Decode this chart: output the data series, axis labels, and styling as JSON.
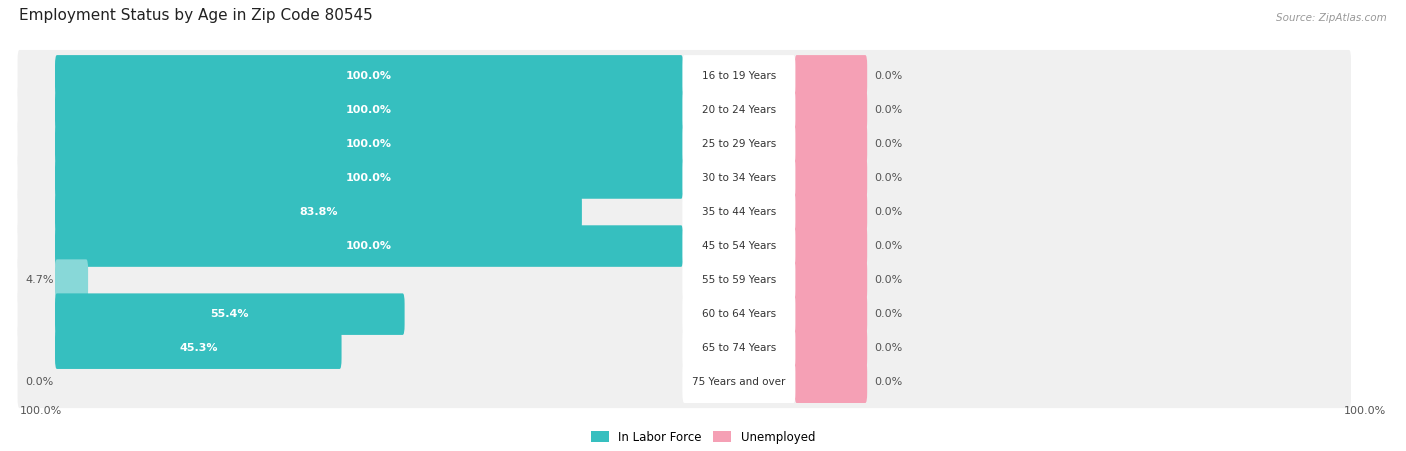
{
  "title": "Employment Status by Age in Zip Code 80545",
  "source_text": "Source: ZipAtlas.com",
  "categories": [
    "16 to 19 Years",
    "20 to 24 Years",
    "25 to 29 Years",
    "30 to 34 Years",
    "35 to 44 Years",
    "45 to 54 Years",
    "55 to 59 Years",
    "60 to 64 Years",
    "65 to 74 Years",
    "75 Years and over"
  ],
  "in_labor_force": [
    100.0,
    100.0,
    100.0,
    100.0,
    83.8,
    100.0,
    4.7,
    55.4,
    45.3,
    0.0
  ],
  "unemployed": [
    0.0,
    0.0,
    0.0,
    0.0,
    0.0,
    0.0,
    0.0,
    0.0,
    0.0,
    0.0
  ],
  "labor_color": "#36bfbf",
  "labor_color_light": "#88d8d8",
  "unemployed_color": "#f5a0b5",
  "row_bg_color": "#f0f0f0",
  "row_bg_color2": "#e8e8e8",
  "label_inside_color": "#ffffff",
  "label_outside_color": "#555555",
  "max_value": 100.0,
  "left_axis_label": "100.0%",
  "right_axis_label": "100.0%",
  "legend_labels": [
    "In Labor Force",
    "Unemployed"
  ],
  "legend_colors": [
    "#36bfbf",
    "#f5a0b5"
  ]
}
